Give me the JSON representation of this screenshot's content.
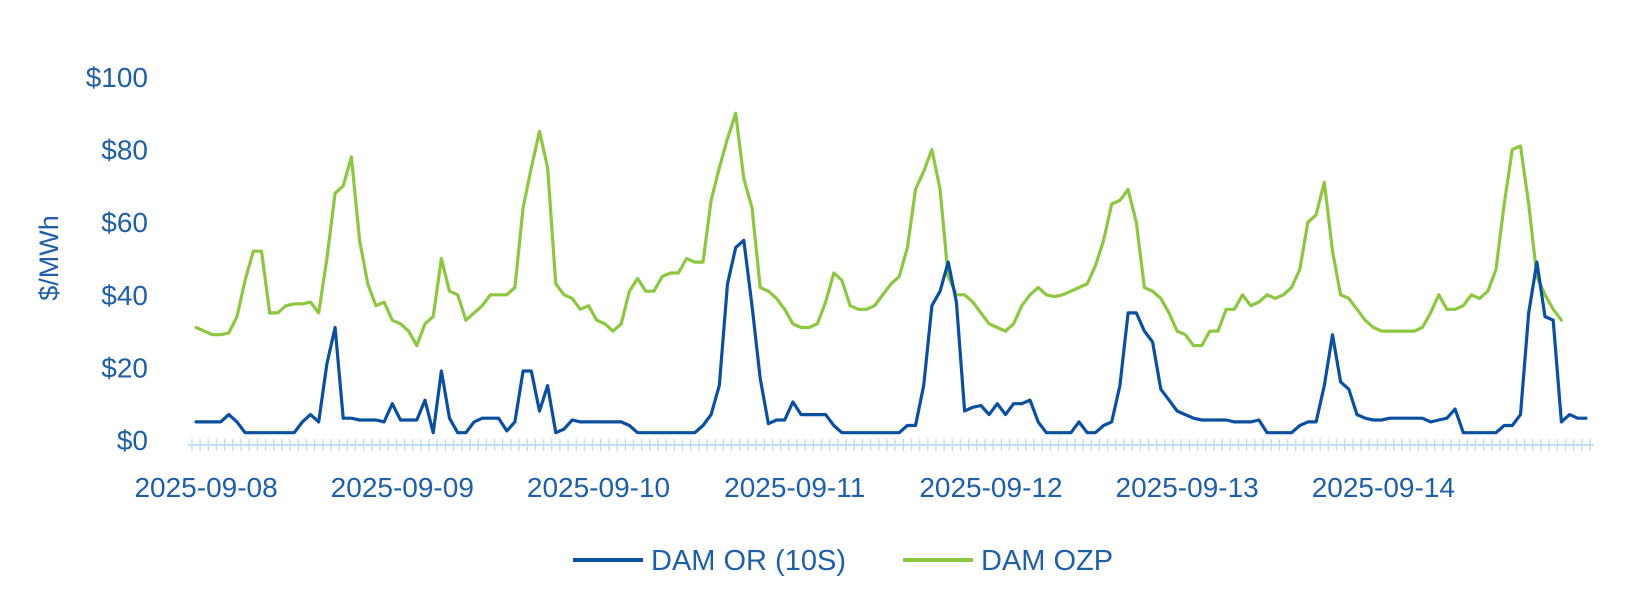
{
  "chart_data": {
    "type": "line",
    "title": "",
    "xlabel": "",
    "ylabel": "$/MWh",
    "ylim": [
      0,
      100
    ],
    "y_ticks": [
      "$0",
      "$20",
      "$40",
      "$60",
      "$80",
      "$100"
    ],
    "x_tick_labels": [
      "2025-09-08",
      "2025-09-09",
      "2025-09-10",
      "2025-09-11",
      "2025-09-12",
      "2025-09-13",
      "2025-09-14"
    ],
    "x_start": "2025-09-08 00:00",
    "x_interval_hours": 1,
    "grid": false,
    "legend_position": "bottom",
    "colors": {
      "axis": "#bfe0f5",
      "text": "#1f5fa8"
    },
    "series": [
      {
        "name": "DAM OR (10S)",
        "color": "#0b4fa0",
        "values": [
          5,
          5,
          5,
          5,
          7,
          5,
          2,
          2,
          2,
          2,
          2,
          2,
          2,
          5,
          7,
          5,
          21,
          31,
          6,
          6,
          5.5,
          5.5,
          5.5,
          5,
          10,
          5.5,
          5.5,
          5.5,
          11,
          2,
          19,
          6,
          2,
          2,
          5,
          6,
          6,
          6,
          2.5,
          5,
          19,
          19,
          8,
          15,
          2,
          3,
          5.5,
          5,
          5,
          5,
          5,
          5,
          5,
          4,
          2,
          2,
          2,
          2,
          2,
          2,
          2,
          2,
          4,
          7,
          15,
          43,
          53,
          55,
          37,
          17,
          4.5,
          5.5,
          5.5,
          10.5,
          7,
          7,
          7,
          7,
          4,
          2,
          2,
          2,
          2,
          2,
          2,
          2,
          2,
          4,
          4,
          15,
          37,
          41,
          49,
          38,
          8,
          9,
          9.5,
          7,
          10,
          7,
          10,
          10,
          11,
          5,
          2,
          2,
          2,
          2,
          5,
          2,
          2,
          4,
          5,
          15,
          35,
          35,
          30,
          27,
          14,
          11,
          8,
          7,
          6,
          5.5,
          5.5,
          5.5,
          5.5,
          5,
          5,
          5,
          5.5,
          2,
          2,
          2,
          2,
          4,
          5,
          5,
          15,
          29,
          16,
          14,
          7,
          6,
          5.5,
          5.5,
          6,
          6,
          6,
          6,
          6,
          5,
          5.5,
          6,
          8.5,
          2,
          2,
          2,
          2,
          2,
          4,
          4,
          7,
          35,
          49,
          34,
          33,
          5,
          7,
          6,
          6
        ]
      },
      {
        "name": "DAM OZP",
        "color": "#8dc63f",
        "values": [
          31,
          30,
          29,
          29,
          29.5,
          34,
          44,
          52,
          52,
          35,
          35,
          37,
          37.5,
          37.5,
          38,
          35,
          50,
          68,
          70,
          78,
          55,
          43,
          37,
          38,
          33,
          32,
          30,
          26,
          32,
          34,
          50,
          41,
          40,
          33,
          35,
          37,
          40,
          40,
          40,
          42,
          64,
          75,
          85,
          75,
          43,
          40,
          39,
          36,
          37,
          33,
          32,
          30,
          32,
          41,
          44.5,
          41,
          41,
          45,
          46,
          46,
          50,
          49,
          49,
          66,
          75,
          83,
          90,
          72,
          64,
          42,
          41,
          39,
          36,
          32,
          31,
          31,
          32,
          38,
          46,
          44,
          37,
          36,
          36,
          37,
          40,
          43,
          45,
          53,
          69,
          74,
          80,
          69,
          45,
          40,
          40,
          38,
          35,
          32,
          31,
          30,
          32,
          37,
          40,
          42,
          40,
          39.5,
          40,
          41,
          42,
          43,
          48,
          55,
          65,
          66,
          69,
          60,
          42,
          41,
          39,
          35,
          30,
          29,
          26,
          26,
          30,
          30,
          36,
          36,
          40,
          37,
          38,
          40,
          39,
          40,
          42,
          47,
          60,
          62,
          71,
          52,
          40,
          39,
          36,
          33,
          31,
          30,
          30,
          30,
          30,
          30,
          31,
          35,
          40,
          36,
          36,
          37,
          40,
          39,
          41,
          47,
          65,
          80,
          81,
          65,
          45,
          40,
          36,
          33
        ]
      }
    ]
  }
}
